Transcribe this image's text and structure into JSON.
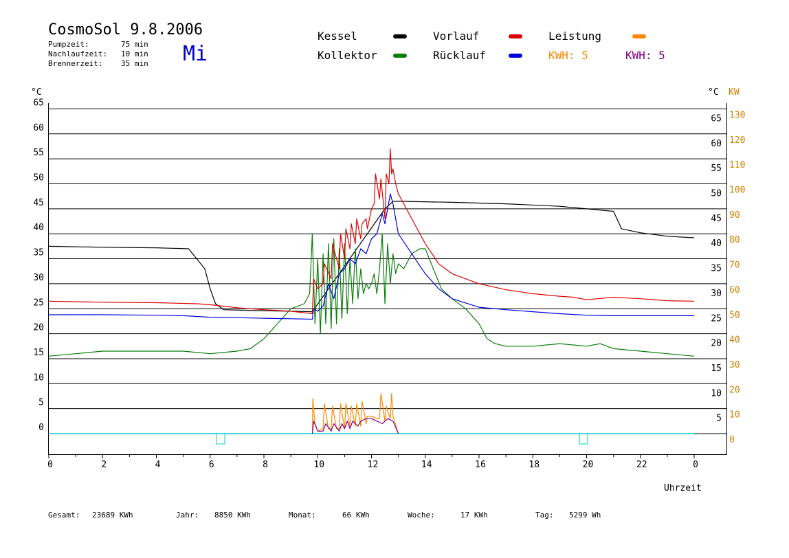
{
  "header": {
    "title": "CosmoSol 9.8.2006",
    "day": "Mi",
    "params": [
      {
        "label": "Pumpzeit:",
        "value": "75 min"
      },
      {
        "label": "Nachlaufzeit:",
        "value": "10 min"
      },
      {
        "label": "Brennerzeit:",
        "value": "35 min"
      }
    ]
  },
  "legend": {
    "kessel": "Kessel",
    "kollektor": "Kollektor",
    "vorlauf": "Vorlauf",
    "ruecklauf": "Rücklauf",
    "leistung": "Leistung",
    "kwh1": "KWH: 5",
    "kwh2": "KWH: 5"
  },
  "axes": {
    "left_unit": "°C",
    "right_unit": "°C",
    "kw_unit": "KW",
    "x_label": "Uhrzeit",
    "x_ticks": [
      "0",
      "2",
      "4",
      "6",
      "8",
      "10",
      "12",
      "14",
      "16",
      "18",
      "20",
      "22",
      "0"
    ],
    "left_ticks": [
      "0",
      "5",
      "10",
      "15",
      "20",
      "25",
      "30",
      "35",
      "40",
      "45",
      "50",
      "55",
      "60",
      "65"
    ],
    "right_ticks": [
      "5",
      "10",
      "15",
      "20",
      "25",
      "30",
      "35",
      "40",
      "45",
      "50",
      "55",
      "60",
      "65"
    ],
    "kw_ticks": [
      "0",
      "10",
      "20",
      "30",
      "40",
      "50",
      "60",
      "70",
      "80",
      "90",
      "100",
      "110",
      "120",
      "130"
    ]
  },
  "footer": [
    {
      "label": "Gesamt:",
      "value": "23689 KWh"
    },
    {
      "label": "Jahr:",
      "value": "8850 KWh"
    },
    {
      "label": "Monat:",
      "value": "66 KWh"
    },
    {
      "label": "Woche:",
      "value": "17 KWh"
    },
    {
      "label": "Tag:",
      "value": "5299 Wh"
    }
  ],
  "colors": {
    "kessel": "#000000",
    "kollektor": "#0a7d0a",
    "vorlauf": "#dd0000",
    "ruecklauf": "#0000dd",
    "leistung": "#ff8800",
    "kwh2": "#800080",
    "zero_line": "#00cccc",
    "day": "#0000cc"
  },
  "chart_data": {
    "type": "line",
    "xlim": [
      0,
      24
    ],
    "ylim_left": [
      0,
      65
    ],
    "ylim_kw": [
      0,
      130
    ],
    "series": [
      {
        "name": "Kessel",
        "color": "#000000",
        "x": [
          0,
          2,
          4,
          5.2,
          5.5,
          5.8,
          6.0,
          6.2,
          6.5,
          8,
          9,
          9.8,
          12.5,
          12.8,
          13,
          15,
          17,
          19,
          20,
          21,
          21.3,
          22,
          23,
          24
        ],
        "y": [
          37.5,
          37.3,
          37.2,
          37,
          35,
          33,
          29,
          26,
          24.8,
          24.6,
          24.5,
          24.4,
          45,
          46.5,
          46.5,
          46.3,
          46,
          45.5,
          45,
          44.5,
          41,
          40.2,
          39.5,
          39.2
        ]
      },
      {
        "name": "Kollektor",
        "color": "#0a7d0a",
        "x": [
          0,
          1,
          2,
          3,
          4,
          5,
          6,
          7,
          7.5,
          8,
          8.5,
          9,
          9.5,
          9.7,
          9.8,
          9.9,
          10.0,
          10.1,
          10.2,
          10.3,
          10.4,
          10.5,
          10.6,
          10.7,
          10.8,
          10.9,
          11.0,
          11.1,
          11.2,
          11.3,
          11.4,
          11.5,
          11.6,
          11.7,
          11.8,
          11.9,
          12.0,
          12.1,
          12.2,
          12.3,
          12.4,
          12.5,
          12.6,
          12.7,
          12.8,
          12.9,
          13.0,
          13.2,
          13.5,
          13.8,
          14.0,
          14.3,
          14.6,
          15,
          15.5,
          16,
          16.3,
          16.6,
          17,
          18,
          19,
          20,
          20.5,
          21,
          22,
          23,
          24
        ],
        "y": [
          15.5,
          16,
          16.5,
          16.5,
          16.5,
          16.5,
          16,
          16.5,
          17,
          19,
          22,
          25,
          26,
          28,
          40,
          22,
          35,
          20,
          36,
          22,
          38,
          21,
          39,
          22,
          37,
          23,
          38,
          24,
          35,
          26,
          37,
          27,
          33,
          28,
          30,
          29,
          30,
          32,
          28,
          33,
          40,
          26,
          38,
          30,
          36,
          32,
          34,
          33,
          36,
          37,
          37,
          33,
          29,
          27,
          25,
          22,
          19,
          18,
          17.5,
          17.5,
          18,
          17.5,
          18,
          17,
          16.5,
          16,
          15.5
        ]
      },
      {
        "name": "Vorlauf",
        "color": "#dd0000",
        "x": [
          0,
          2,
          4,
          5.5,
          6.0,
          6.5,
          7,
          8,
          9,
          9.5,
          9.8,
          9.85,
          10,
          10.2,
          10.25,
          10.5,
          10.55,
          10.8,
          10.85,
          11.0,
          11.05,
          11.2,
          11.25,
          11.4,
          11.45,
          11.6,
          11.65,
          11.8,
          11.85,
          12.0,
          12.1,
          12.15,
          12.3,
          12.35,
          12.5,
          12.55,
          12.65,
          12.7,
          12.75,
          12.8,
          12.9,
          13.0,
          13.5,
          14,
          14.5,
          15,
          16,
          17,
          18,
          19,
          19.5,
          20,
          21,
          22,
          23,
          24
        ],
        "y": [
          26.5,
          26.3,
          26.2,
          26,
          25.8,
          25.5,
          25.2,
          24.8,
          24.5,
          24.2,
          24,
          31,
          29,
          30,
          34,
          31,
          38,
          33,
          40,
          35,
          41,
          37,
          42,
          38,
          43,
          39,
          42,
          43,
          41,
          45,
          46,
          52,
          47,
          51,
          43,
          52,
          50,
          57,
          52,
          53,
          50,
          48,
          43,
          38,
          34,
          32,
          30,
          28.8,
          28,
          27.5,
          27.3,
          26.8,
          27.3,
          27.0,
          26.6,
          26.5
        ]
      },
      {
        "name": "Rücklauf",
        "color": "#0000dd",
        "x": [
          0,
          2,
          4,
          5,
          6,
          7,
          8,
          9,
          9.8,
          9.85,
          10,
          10.2,
          10.4,
          10.6,
          10.8,
          11.0,
          11.2,
          11.4,
          11.6,
          11.8,
          12.0,
          12.2,
          12.4,
          12.5,
          12.6,
          12.7,
          12.8,
          12.9,
          13.0,
          13.5,
          14,
          14.5,
          15,
          16,
          17,
          18,
          19,
          20,
          21,
          22,
          23,
          24
        ],
        "y": [
          23.8,
          23.8,
          23.7,
          23.6,
          23.3,
          23.2,
          23.1,
          23.0,
          22.9,
          25,
          24.5,
          25.5,
          30,
          27,
          32,
          33,
          35,
          34,
          37,
          36,
          39,
          40,
          44,
          42,
          45,
          48,
          46,
          43,
          40,
          36,
          32,
          29,
          27,
          25.3,
          24.8,
          24.4,
          24.0,
          23.7,
          23.6,
          23.6,
          23.6,
          23.6
        ]
      },
      {
        "name": "Leistung",
        "color": "#ff8800",
        "axis": "kw",
        "x": [
          9.8,
          9.82,
          9.9,
          10.0,
          10.2,
          10.25,
          10.4,
          10.5,
          10.55,
          10.7,
          10.8,
          10.85,
          11.0,
          11.05,
          11.2,
          11.25,
          11.4,
          11.45,
          11.6,
          11.65,
          11.8,
          11.85,
          12.0,
          12.2,
          12.3,
          12.35,
          12.5,
          12.55,
          12.7,
          12.75,
          12.8,
          13.0
        ],
        "y": [
          1,
          14,
          4,
          1,
          2,
          12,
          2,
          2,
          11,
          2,
          2,
          12,
          2,
          12,
          3,
          11,
          3,
          12,
          3,
          13,
          4,
          7,
          7,
          6,
          6,
          16,
          5,
          11,
          6,
          16,
          7,
          0
        ]
      },
      {
        "name": "KWH",
        "color": "#800080",
        "axis": "kw",
        "x": [
          9.8,
          9.85,
          10.0,
          10.2,
          10.3,
          10.5,
          10.6,
          10.8,
          10.9,
          11.0,
          11.1,
          11.2,
          11.3,
          11.5,
          11.6,
          11.8,
          12.0,
          12.2,
          12.4,
          12.6,
          12.8,
          13.0
        ],
        "y": [
          0,
          5,
          1,
          1,
          4,
          1,
          4,
          1,
          4,
          2,
          5,
          2,
          5,
          3,
          5,
          6,
          6,
          5,
          4,
          6,
          5,
          0
        ]
      }
    ]
  }
}
